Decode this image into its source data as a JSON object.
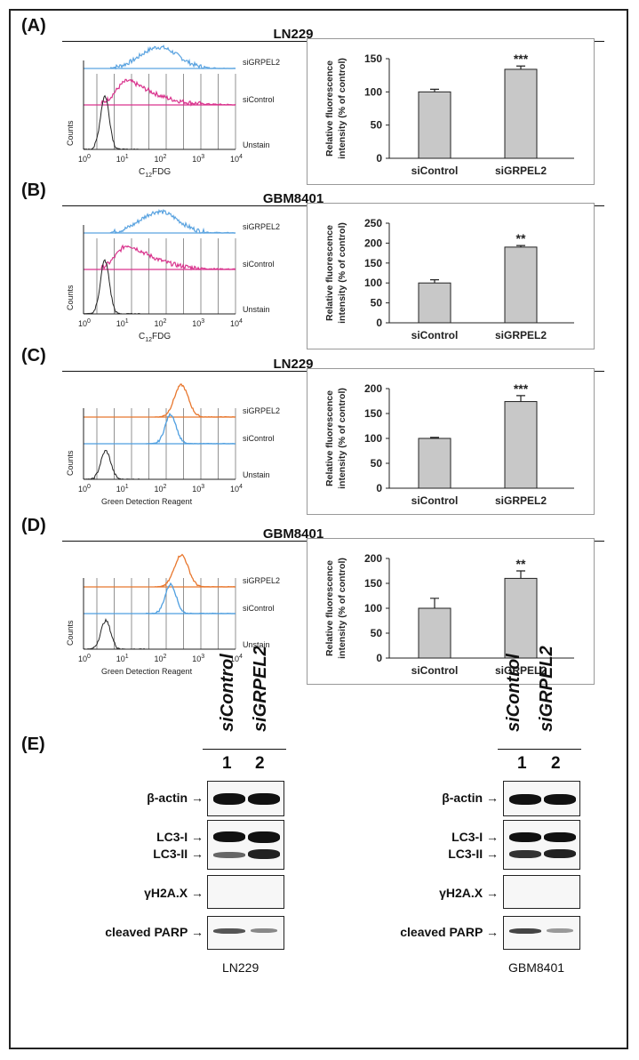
{
  "panels": [
    {
      "letter": "(A)",
      "title": "LN229",
      "flow": {
        "xlabel_main": "C",
        "xlabel_sub": "12",
        "xlabel_tail": "FDG",
        "ylabel": "Counts",
        "ticks": [
          "10",
          "10",
          "10",
          "10",
          "10"
        ],
        "tick_exp": [
          "0",
          "1",
          "2",
          "3",
          "4"
        ],
        "labels": [
          "siGRPEL2",
          "siControl",
          "Unstain"
        ],
        "colors": [
          "#5aa3e0",
          "#d9338d",
          "#222222"
        ]
      },
      "chart": {
        "type": "bar",
        "categories": [
          "siControl",
          "siGRPEL2"
        ],
        "values": [
          100,
          134
        ],
        "errors": [
          4,
          5
        ],
        "ylim": [
          0,
          150
        ],
        "yticks": [
          "0",
          "50",
          "100",
          "150"
        ],
        "ylabel_line1": "Relative fluorescence",
        "ylabel_line2": "intensity (% of control)",
        "significance": "***"
      }
    },
    {
      "letter": "(B)",
      "title": "GBM8401",
      "flow": {
        "xlabel_main": "C",
        "xlabel_sub": "12",
        "xlabel_tail": "FDG",
        "ylabel": "Counts",
        "ticks": [
          "10",
          "10",
          "10",
          "10",
          "10"
        ],
        "tick_exp": [
          "0",
          "1",
          "2",
          "3",
          "4"
        ],
        "labels": [
          "siGRPEL2",
          "siControl",
          "Unstain"
        ],
        "colors": [
          "#5aa3e0",
          "#d9338d",
          "#222222"
        ]
      },
      "chart": {
        "type": "bar",
        "categories": [
          "siControl",
          "siGRPEL2"
        ],
        "values": [
          100,
          190
        ],
        "errors": [
          8,
          4
        ],
        "ylim": [
          0,
          250
        ],
        "yticks": [
          "0",
          "50",
          "100",
          "150",
          "200",
          "250"
        ],
        "ylabel_line1": "Relative fluorescence",
        "ylabel_line2": "intensity (% of control)",
        "significance": "**"
      }
    },
    {
      "letter": "(C)",
      "title": "LN229",
      "flow": {
        "xlabel_main": "Green Detection Reagent",
        "xlabel_sub": "",
        "xlabel_tail": "",
        "ylabel": "Counts",
        "ticks": [
          "10",
          "10",
          "10",
          "10",
          "10"
        ],
        "tick_exp": [
          "0",
          "1",
          "2",
          "3",
          "4"
        ],
        "labels": [
          "siGRPEL2",
          "siControl",
          "Unstain"
        ],
        "colors": [
          "#e8772e",
          "#4f9fe0",
          "#222222"
        ]
      },
      "chart": {
        "type": "bar",
        "categories": [
          "siControl",
          "siGRPEL2"
        ],
        "values": [
          100,
          174
        ],
        "errors": [
          2,
          12
        ],
        "ylim": [
          0,
          200
        ],
        "yticks": [
          "0",
          "50",
          "100",
          "150",
          "200"
        ],
        "ylabel_line1": "Relative fluorescence",
        "ylabel_line2": "intensity (% of control)",
        "significance": "***"
      }
    },
    {
      "letter": "(D)",
      "title": "GBM8401",
      "flow": {
        "xlabel_main": "Green Detection Reagent",
        "xlabel_sub": "",
        "xlabel_tail": "",
        "ylabel": "Counts",
        "ticks": [
          "10",
          "10",
          "10",
          "10",
          "10"
        ],
        "tick_exp": [
          "0",
          "1",
          "2",
          "3",
          "4"
        ],
        "labels": [
          "siGRPEL2",
          "siControl",
          "Unstain"
        ],
        "colors": [
          "#e8772e",
          "#4f9fe0",
          "#222222"
        ]
      },
      "chart": {
        "type": "bar",
        "categories": [
          "siControl",
          "siGRPEL2"
        ],
        "values": [
          100,
          160
        ],
        "errors": [
          20,
          15
        ],
        "ylim": [
          0,
          200
        ],
        "yticks": [
          "0",
          "50",
          "100",
          "150",
          "200"
        ],
        "ylabel_line1": "Relative fluorescence",
        "ylabel_line2": "intensity (% of control)",
        "significance": "**"
      }
    }
  ],
  "western": {
    "letter": "(E)",
    "lanes": [
      "siControl",
      "siGRPEL2"
    ],
    "lane_numbers": [
      "1",
      "2"
    ],
    "rows": [
      "β-actin",
      "LC3-I",
      "LC3-II",
      "γH2A.X",
      "cleaved PARP"
    ],
    "cells": [
      "LN229",
      "GBM8401"
    ]
  },
  "chart_data": [
    {
      "type": "bar",
      "title": "(A) LN229",
      "categories": [
        "siControl",
        "siGRPEL2"
      ],
      "values": [
        100,
        134
      ],
      "errors": [
        4,
        5
      ],
      "ylabel": "Relative fluorescence intensity (% of control)",
      "ylim": [
        0,
        150
      ]
    },
    {
      "type": "bar",
      "title": "(B) GBM8401",
      "categories": [
        "siControl",
        "siGRPEL2"
      ],
      "values": [
        100,
        190
      ],
      "errors": [
        8,
        4
      ],
      "ylabel": "Relative fluorescence intensity (% of control)",
      "ylim": [
        0,
        250
      ]
    },
    {
      "type": "bar",
      "title": "(C) LN229",
      "categories": [
        "siControl",
        "siGRPEL2"
      ],
      "values": [
        100,
        174
      ],
      "errors": [
        2,
        12
      ],
      "ylabel": "Relative fluorescence intensity (% of control)",
      "ylim": [
        0,
        200
      ]
    },
    {
      "type": "bar",
      "title": "(D) GBM8401",
      "categories": [
        "siControl",
        "siGRPEL2"
      ],
      "values": [
        100,
        160
      ],
      "errors": [
        20,
        15
      ],
      "ylabel": "Relative fluorescence intensity (% of control)",
      "ylim": [
        0,
        200
      ]
    }
  ]
}
